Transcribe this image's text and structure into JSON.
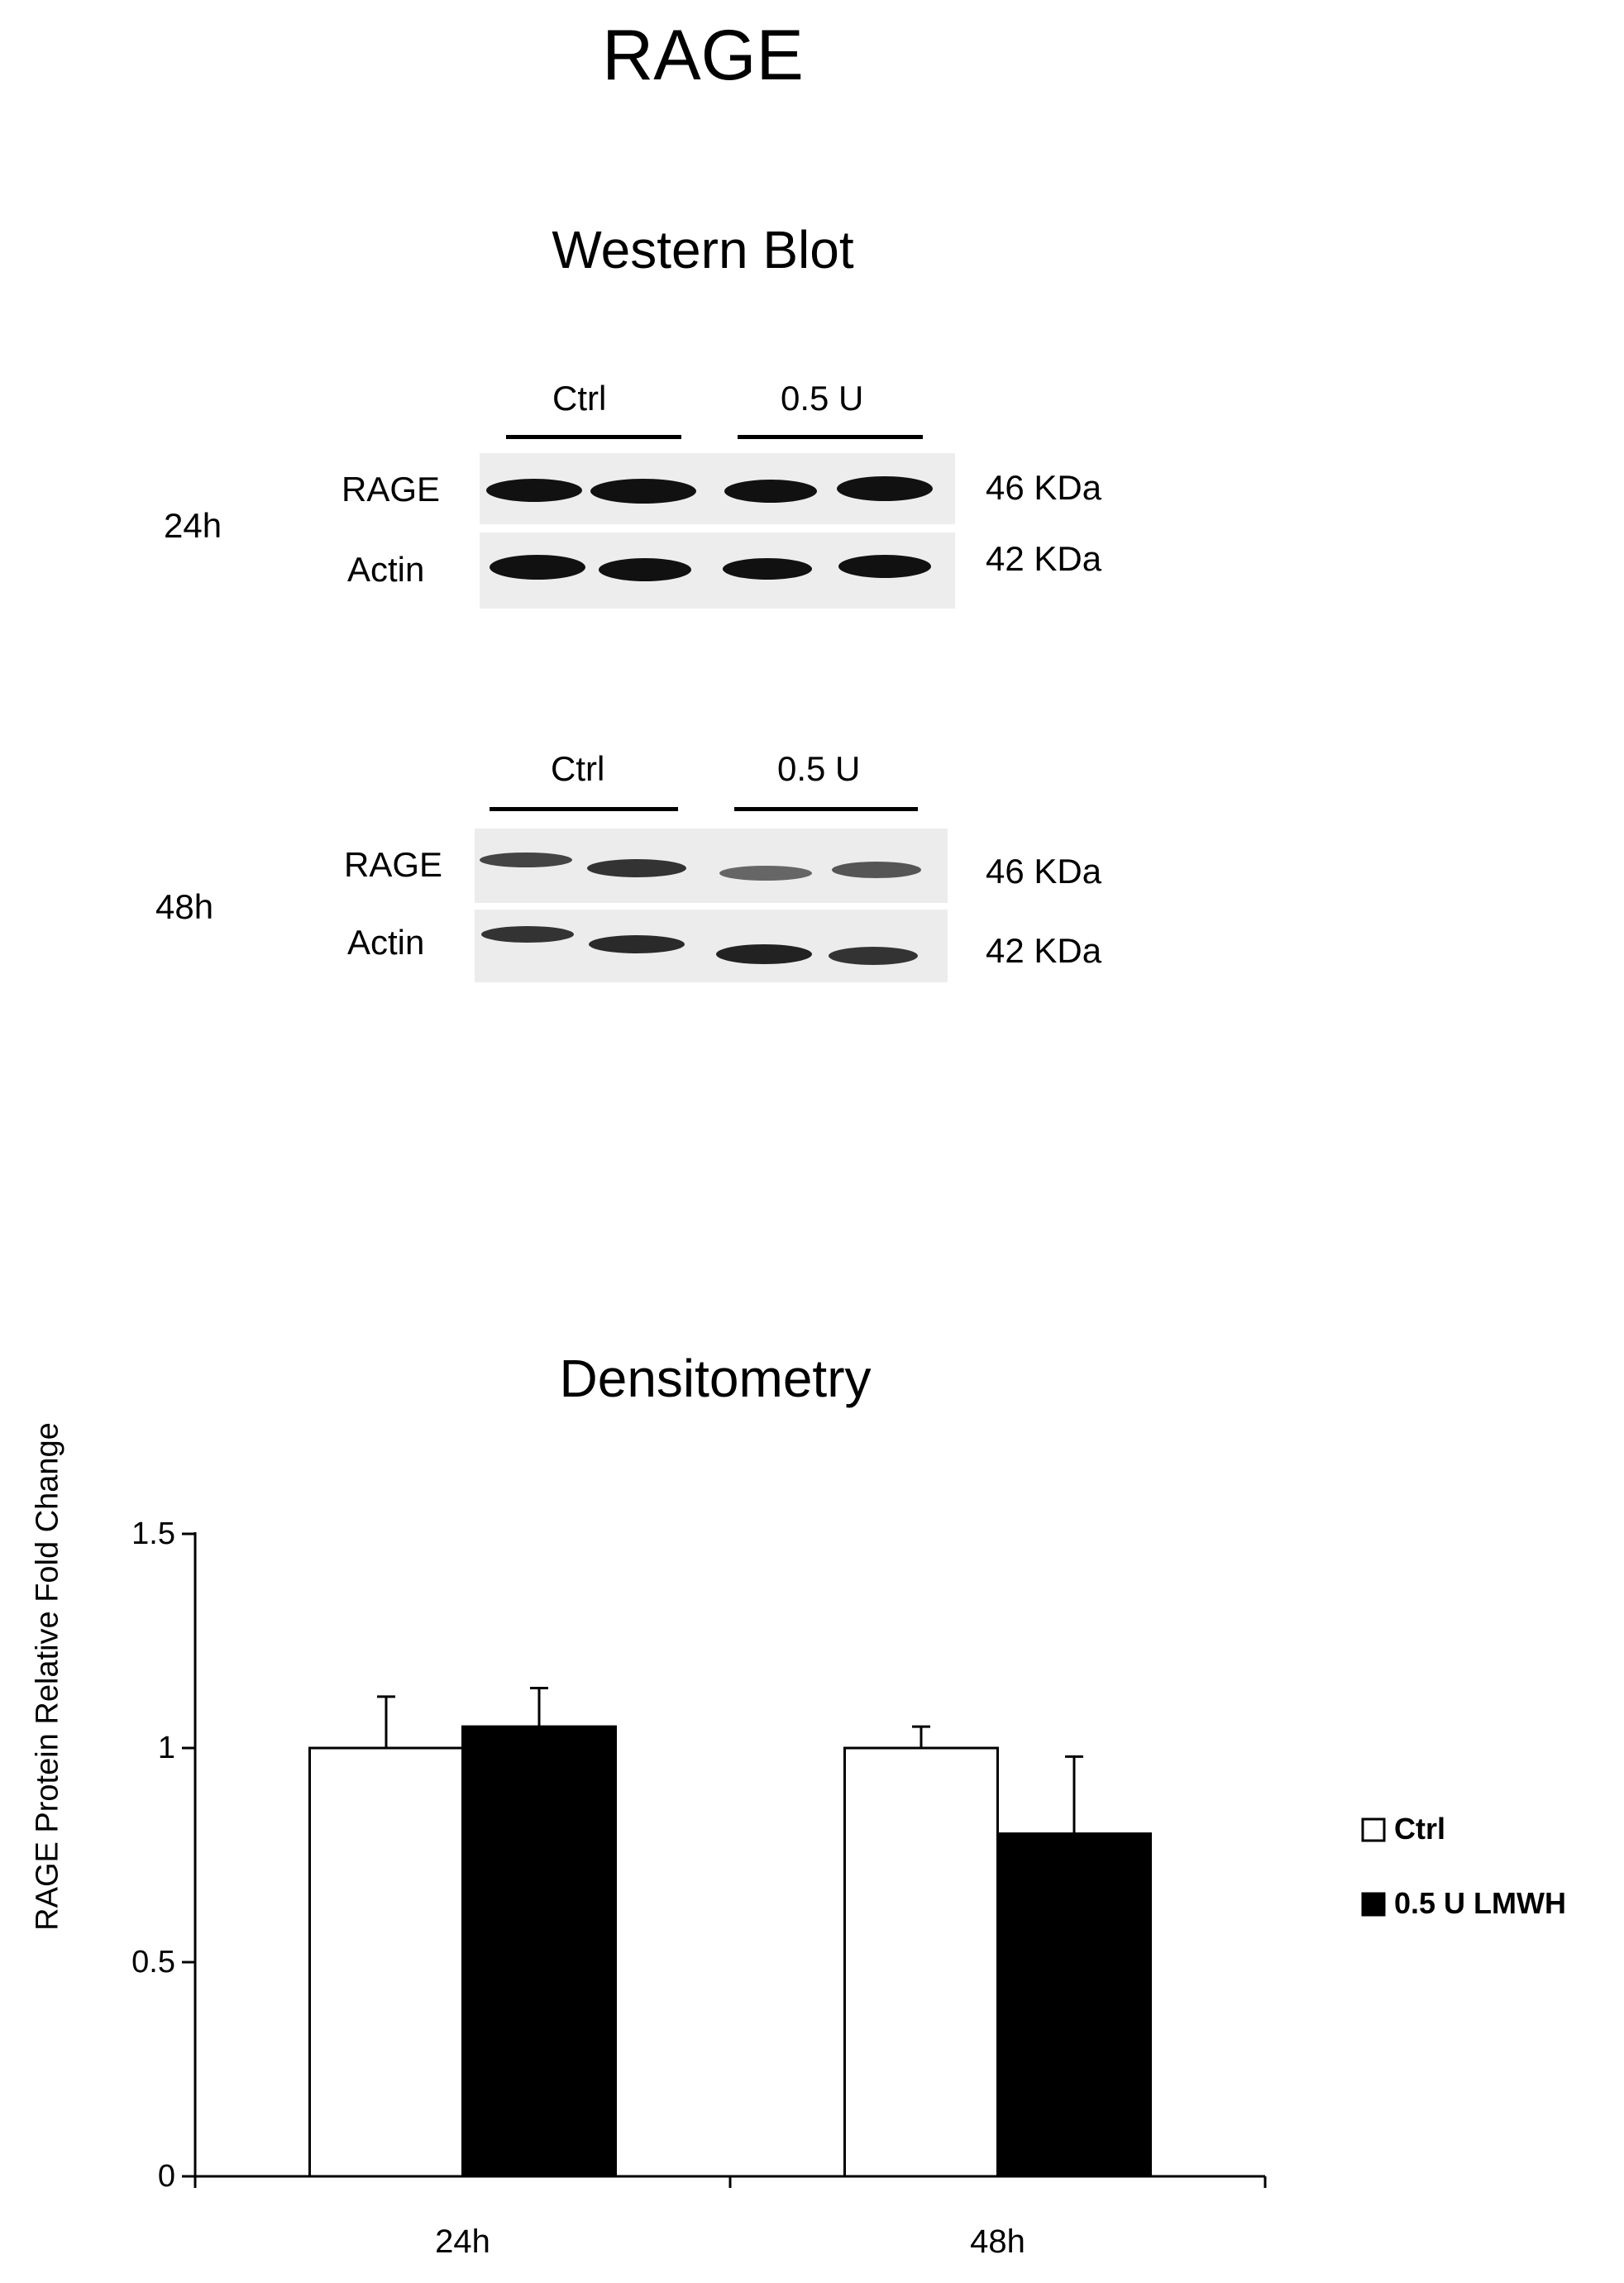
{
  "title": "RAGE",
  "western_blot": {
    "title": "Western Blot",
    "panels": [
      {
        "time": "24h",
        "groups": [
          "Ctrl",
          "0.5 U"
        ],
        "rows": [
          {
            "label": "RAGE",
            "kda": "46 KDa"
          },
          {
            "label": "Actin",
            "kda": "42 KDa"
          }
        ]
      },
      {
        "time": "48h",
        "groups": [
          "Ctrl",
          "0.5 U"
        ],
        "rows": [
          {
            "label": "RAGE",
            "kda": "46 KDa"
          },
          {
            "label": "Actin",
            "kda": "42 KDa"
          }
        ]
      }
    ]
  },
  "densitometry_title": "Densitometry",
  "chart_data": {
    "type": "bar",
    "title": "Densitometry",
    "categories": [
      "24h",
      "48h"
    ],
    "series": [
      {
        "name": "Ctrl",
        "values": [
          1.0,
          1.0
        ],
        "errors": [
          0.12,
          0.05
        ],
        "color": "#ffffff"
      },
      {
        "name": "0.5 U LMWH",
        "values": [
          1.05,
          0.8
        ],
        "errors": [
          0.09,
          0.18
        ],
        "color": "#000000"
      }
    ],
    "xlabel": "",
    "ylabel": "RAGE Protein Relative Fold Change",
    "ylim": [
      0,
      1.5
    ],
    "yticks": [
      0,
      0.5,
      1,
      1.5
    ],
    "ytick_labels": [
      "0",
      "0.5",
      "1",
      "1.5"
    ],
    "grid": false,
    "legend_position": "right"
  }
}
